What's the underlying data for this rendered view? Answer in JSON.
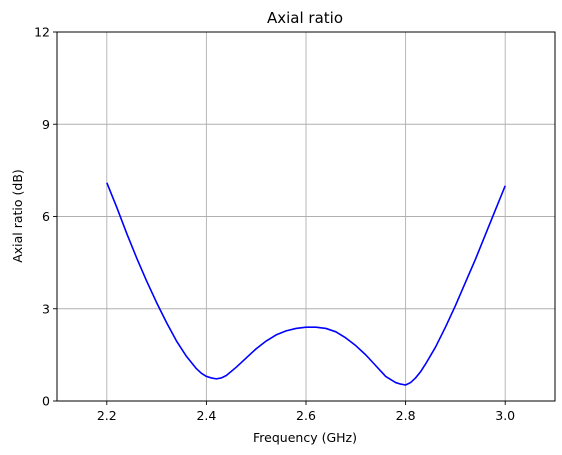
{
  "chart_data": {
    "type": "line",
    "title": "Axial ratio",
    "xlabel": "Frequency (GHz)",
    "ylabel": "Axial ratio (dB)",
    "xlim": [
      2.1,
      3.1
    ],
    "ylim": [
      0,
      12
    ],
    "xticks": [
      2.2,
      2.4,
      2.6,
      2.8,
      3.0
    ],
    "xtick_labels": [
      "2.2",
      "2.4",
      "2.6",
      "2.8",
      "3.0"
    ],
    "yticks": [
      0,
      3,
      6,
      9,
      12
    ],
    "ytick_labels": [
      "0",
      "3",
      "6",
      "9",
      "12"
    ],
    "grid": true,
    "series": [
      {
        "color": "#0000ff",
        "x": [
          2.2,
          2.22,
          2.24,
          2.26,
          2.28,
          2.3,
          2.32,
          2.34,
          2.36,
          2.38,
          2.39,
          2.4,
          2.41,
          2.42,
          2.43,
          2.44,
          2.46,
          2.48,
          2.5,
          2.52,
          2.54,
          2.56,
          2.58,
          2.6,
          2.62,
          2.64,
          2.66,
          2.68,
          2.7,
          2.72,
          2.74,
          2.76,
          2.78,
          2.79,
          2.8,
          2.81,
          2.82,
          2.83,
          2.84,
          2.86,
          2.88,
          2.9,
          2.92,
          2.94,
          2.96,
          2.98,
          3.0
        ],
        "y": [
          7.1,
          6.3,
          5.45,
          4.65,
          3.9,
          3.2,
          2.55,
          1.95,
          1.45,
          1.05,
          0.9,
          0.8,
          0.75,
          0.72,
          0.75,
          0.83,
          1.1,
          1.4,
          1.7,
          1.95,
          2.15,
          2.28,
          2.36,
          2.4,
          2.4,
          2.36,
          2.25,
          2.05,
          1.8,
          1.5,
          1.15,
          0.8,
          0.6,
          0.55,
          0.52,
          0.6,
          0.75,
          0.95,
          1.2,
          1.75,
          2.4,
          3.1,
          3.85,
          4.6,
          5.4,
          6.2,
          7.0
        ]
      }
    ]
  }
}
